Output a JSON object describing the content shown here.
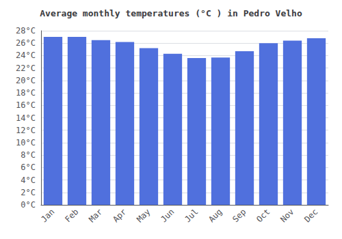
{
  "chart_data": {
    "type": "bar",
    "title": "Average monthly temperatures (°C ) in Pedro Velho",
    "categories": [
      "Jan",
      "Feb",
      "Mar",
      "Apr",
      "May",
      "Jun",
      "Jul",
      "Aug",
      "Sep",
      "Oct",
      "Nov",
      "Dec"
    ],
    "values": [
      27.0,
      27.0,
      26.5,
      26.2,
      25.2,
      24.3,
      23.6,
      23.7,
      24.7,
      26.0,
      26.4,
      26.8
    ],
    "ylim": [
      0,
      28
    ],
    "yticks": [
      {
        "value": 0,
        "label": "0°C"
      },
      {
        "value": 2,
        "label": "2°C"
      },
      {
        "value": 4,
        "label": "4°C"
      },
      {
        "value": 6,
        "label": "6°C"
      },
      {
        "value": 8,
        "label": "8°C"
      },
      {
        "value": 10,
        "label": "10°C"
      },
      {
        "value": 12,
        "label": "12°C"
      },
      {
        "value": 14,
        "label": "14°C"
      },
      {
        "value": 16,
        "label": "16°C"
      },
      {
        "value": 18,
        "label": "18°C"
      },
      {
        "value": 20,
        "label": "20°C"
      },
      {
        "value": 22,
        "label": "22°C"
      },
      {
        "value": 24,
        "label": "24°C"
      },
      {
        "value": 26,
        "label": "26°C"
      },
      {
        "value": 28,
        "label": "28°C"
      }
    ],
    "grid": true
  }
}
